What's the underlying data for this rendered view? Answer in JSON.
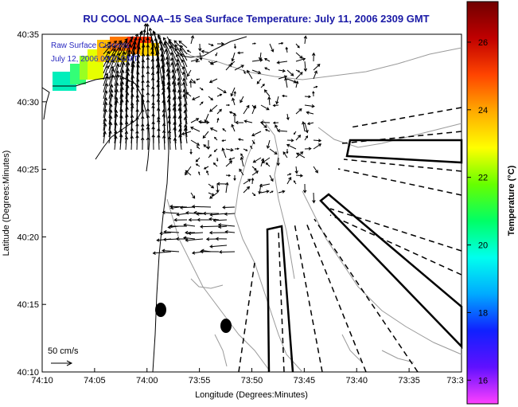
{
  "title": "RU COOL  NOAA–15  Sea Surface Temperature:  July 11, 2006 2309 GMT",
  "overlay_line1": "Raw Surface Currents",
  "overlay_line2": "July 12, 2006 0000 GMT",
  "x_axis_label": "Longitude (Degrees:Minutes)",
  "y_axis_label": "Latitude (Degrees:Minutes)",
  "x_ticks": [
    "74:10",
    "74:05",
    "74:00",
    "73:55",
    "73:50",
    "73:45",
    "73:40",
    "73:35",
    "73:3"
  ],
  "y_ticks": [
    "40:35",
    "40:30",
    "40:25",
    "40:20",
    "40:15",
    "40:10"
  ],
  "scale_label": "50 cm/s",
  "colorbar": {
    "label": "Temperature (°C)",
    "ticks": [
      "26",
      "24",
      "22",
      "20",
      "18",
      "16"
    ],
    "min": 15.3,
    "max": 27.2,
    "colors": [
      "#ff40ff",
      "#6010ff",
      "#1020ff",
      "#00aaff",
      "#00ffee",
      "#00ff66",
      "#66ff00",
      "#ffff00",
      "#ffaa00",
      "#ff4400",
      "#c00000",
      "#700000"
    ]
  },
  "map": {
    "lon_range": [
      "74:10",
      "73:30"
    ],
    "lat_range": [
      "40:10",
      "40:35"
    ],
    "land_color": "#ffffff",
    "contour_color": "#9a9a9a",
    "vector_color": "#000000"
  },
  "markers": [
    {
      "name": "mooring-1"
    },
    {
      "name": "mooring-2"
    }
  ]
}
